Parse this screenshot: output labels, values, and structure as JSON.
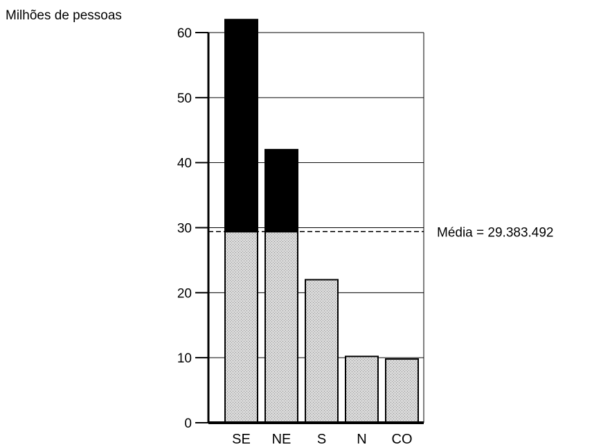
{
  "chart_data": {
    "type": "bar",
    "title": "",
    "ylabel": "Milhões de pessoas",
    "xlabel": "",
    "categories": [
      "SE",
      "NE",
      "S",
      "N",
      "CO"
    ],
    "values": [
      62,
      42,
      22,
      10.2,
      9.8
    ],
    "ylim": [
      0,
      60
    ],
    "yticks": [
      0,
      10,
      20,
      30,
      40,
      50,
      60
    ],
    "grid": true,
    "reference_line": {
      "value": 29.383492,
      "label": "Média = 29.383.492",
      "style": "dashed"
    },
    "colors": {
      "below_mean": "#d4d4d4",
      "above_mean": "#000000"
    }
  }
}
